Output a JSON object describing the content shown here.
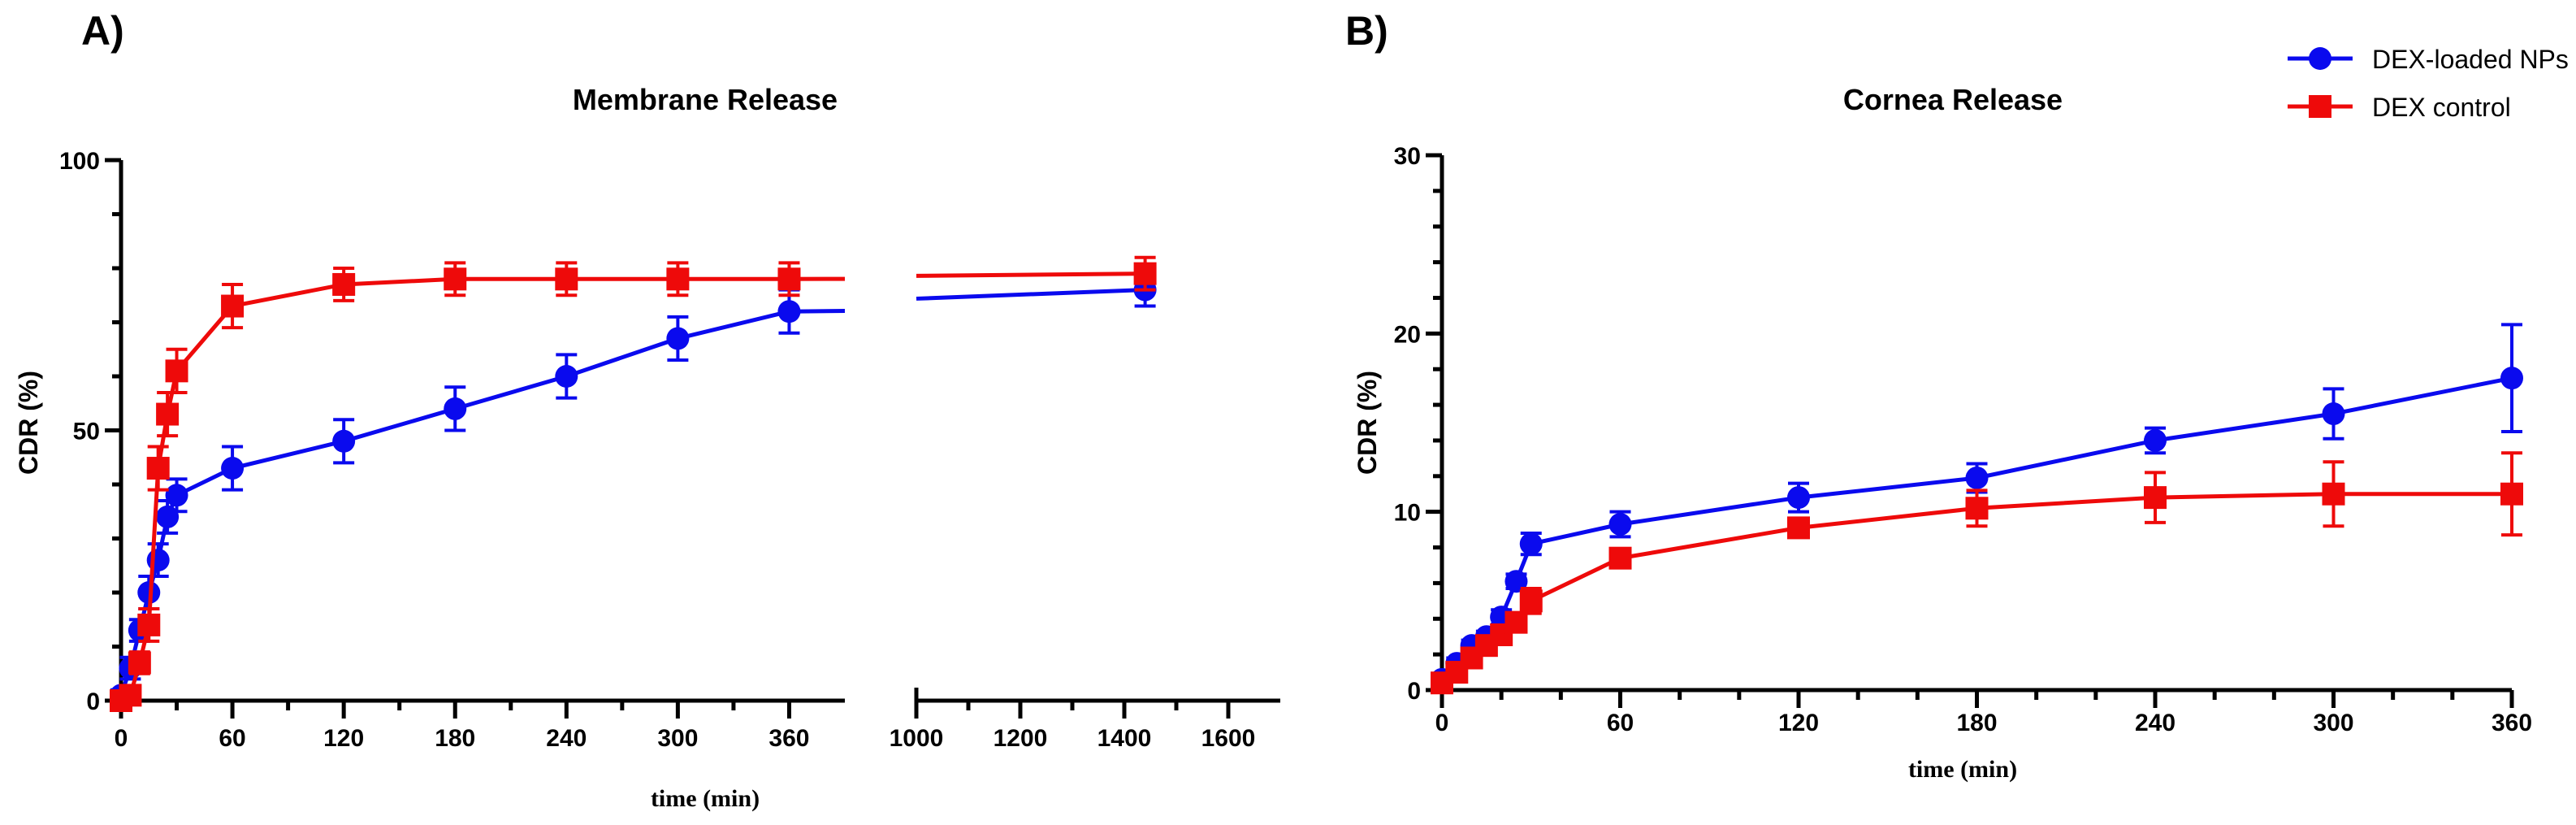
{
  "panels": {
    "a": {
      "label": "A)"
    },
    "b": {
      "label": "B)"
    }
  },
  "legend": {
    "items": [
      {
        "label": "DEX-loaded NPs",
        "color": "#0a0aee",
        "marker": "circle"
      },
      {
        "label": "DEX control",
        "color": "#ee0a0a",
        "marker": "square"
      }
    ]
  },
  "chart_data": [
    {
      "type": "line",
      "title": "Membrane Release",
      "xlabel": "time (min)",
      "ylabel": "CDR (%)",
      "ylim": [
        0,
        100
      ],
      "yticks": [
        "0",
        "50",
        "100"
      ],
      "xaxis_segments": [
        {
          "xlim": [
            0,
            390
          ],
          "ticks": [
            "0",
            "60",
            "120",
            "180",
            "240",
            "300",
            "360"
          ]
        },
        {
          "xlim": [
            1000,
            1700
          ],
          "ticks": [
            "1000",
            "1200",
            "1400",
            "1600"
          ]
        }
      ],
      "series": [
        {
          "name": "DEX-loaded NPs",
          "color": "#0a0aee",
          "marker": "circle",
          "x": [
            0,
            5,
            10,
            15,
            20,
            25,
            30,
            60,
            120,
            180,
            240,
            300,
            360,
            1440
          ],
          "y": [
            1,
            6,
            13,
            20,
            26,
            34,
            38,
            43,
            48,
            54,
            60,
            67,
            72,
            76
          ],
          "err": [
            1,
            2,
            2,
            3,
            3,
            3,
            3,
            4,
            4,
            4,
            4,
            4,
            4,
            3
          ]
        },
        {
          "name": "DEX control",
          "color": "#ee0a0a",
          "marker": "square",
          "x": [
            0,
            5,
            10,
            15,
            20,
            25,
            30,
            60,
            120,
            180,
            240,
            300,
            360,
            1440
          ],
          "y": [
            0,
            1,
            7,
            14,
            43,
            53,
            61,
            73,
            77,
            78,
            78,
            78,
            78,
            79
          ],
          "err": [
            1,
            1,
            2,
            3,
            4,
            4,
            4,
            4,
            3,
            3,
            3,
            3,
            3,
            3
          ]
        }
      ]
    },
    {
      "type": "line",
      "title": "Cornea Release",
      "xlabel": "time (min)",
      "ylabel": "CDR (%)",
      "ylim": [
        0,
        30
      ],
      "xlim": [
        0,
        360
      ],
      "yticks": [
        "0",
        "10",
        "20",
        "30"
      ],
      "xticks": [
        "0",
        "60",
        "120",
        "180",
        "240",
        "300",
        "360"
      ],
      "series": [
        {
          "name": "DEX-loaded NPs",
          "color": "#0a0aee",
          "marker": "circle",
          "x": [
            0,
            5,
            10,
            15,
            20,
            25,
            30,
            60,
            120,
            180,
            240,
            300,
            360
          ],
          "y": [
            0.6,
            1.5,
            2.5,
            3.0,
            4.1,
            6.1,
            8.2,
            9.3,
            10.8,
            11.9,
            14.0,
            15.5,
            17.5
          ],
          "err": [
            0.2,
            0.3,
            0.3,
            0.3,
            0.4,
            0.4,
            0.6,
            0.7,
            0.8,
            0.8,
            0.7,
            1.4,
            3.0
          ]
        },
        {
          "name": "DEX control",
          "color": "#ee0a0a",
          "marker": "square",
          "x": [
            0,
            5,
            10,
            15,
            20,
            25,
            30,
            60,
            120,
            180,
            240,
            300,
            360
          ],
          "y": [
            0.4,
            1.0,
            1.8,
            2.5,
            3.1,
            3.8,
            5.0,
            7.4,
            9.1,
            10.2,
            10.8,
            11.0,
            11.0
          ],
          "err": [
            0.2,
            0.2,
            0.3,
            0.3,
            0.4,
            0.4,
            0.7,
            0.4,
            0.4,
            1.0,
            1.4,
            1.8,
            2.3
          ]
        }
      ]
    }
  ]
}
